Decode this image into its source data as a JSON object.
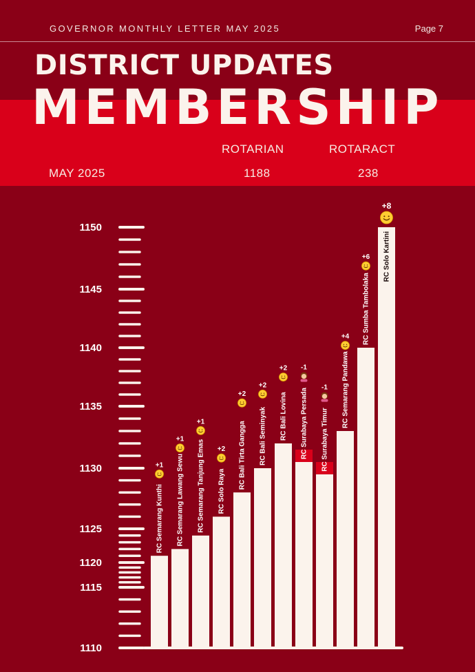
{
  "header": {
    "left": "GOVERNOR MONTHLY LETTER MAY 2025",
    "page": "Page 7"
  },
  "title": {
    "line1": "DISTRICT UPDATES",
    "line2": "MEMBERSHIP"
  },
  "summary": {
    "col1_label": "ROTARIAN",
    "col2_label": "ROTARACT",
    "row_label": "MAY 2025",
    "rotarian": "1188",
    "rotaract": "238"
  },
  "colors": {
    "background": "#8a0017",
    "band": "#d9001a",
    "bar": "#fbf3ec",
    "decrease": "#d9001a"
  },
  "chart_data": {
    "type": "bar",
    "ylim": [
      1110,
      1150
    ],
    "yticks": [
      1110,
      1115,
      1120,
      1125,
      1130,
      1135,
      1140,
      1145,
      1150
    ],
    "categories": [
      "RC Semarang Kunthi",
      "RC Semarang Lawang Sewu",
      "RC Semarang Tanjung Emas",
      "RC Solo Raya",
      "RC Bali Tirta Gangga",
      "RC Bali Seminyak",
      "RC Bali Lovina",
      "RC Surabaya Persada",
      "RC Surabaya Timur",
      "RC Semarang Pandawa",
      "RC Sumba Tambolaka",
      "RC Solo Kartini"
    ],
    "values": [
      1121,
      1122,
      1124,
      1126,
      1128,
      1130,
      1132,
      1130.5,
      1129.5,
      1133,
      1140,
      1150
    ],
    "changes": [
      "+1",
      "+1",
      "+1",
      "+2",
      "+2",
      "+2",
      "+2",
      "-1",
      "-1",
      "+4",
      "+6",
      "+8"
    ],
    "change_icons": [
      "smile-icon",
      "smile-icon",
      "smile-icon",
      "smile-icon",
      "smile-icon",
      "smile-icon",
      "smile-icon",
      "sad-person-icon",
      "sad-person-icon",
      "smile-icon",
      "smile-icon",
      "smile-icon"
    ]
  }
}
